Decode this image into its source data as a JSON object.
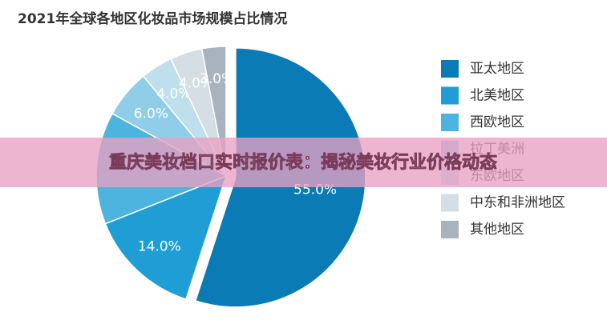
{
  "chart_data": {
    "type": "pie",
    "title": "2021年全球各地区化妆品市场规模占比情况",
    "categories": [
      "亚太地区",
      "北美地区",
      "西欧地区",
      "拉丁美洲",
      "东欧地区",
      "中东和非洲地区",
      "其他地区"
    ],
    "values": [
      55.0,
      14.0,
      14.0,
      6.0,
      4.0,
      4.0,
      3.0
    ],
    "value_labels": [
      "55.0%",
      "14.0%",
      null,
      "6.0%",
      "4.0%",
      "4.0%",
      "3.0%"
    ],
    "colors": [
      "#0a7bb5",
      "#1f9ed6",
      "#4db4e0",
      "#8fcde9",
      "#bfdfed",
      "#d5dde5",
      "#a9b3bf"
    ],
    "legend": "right"
  },
  "banner": "重庆美妆档口实时报价表：揭秘美妆行业价格动态"
}
